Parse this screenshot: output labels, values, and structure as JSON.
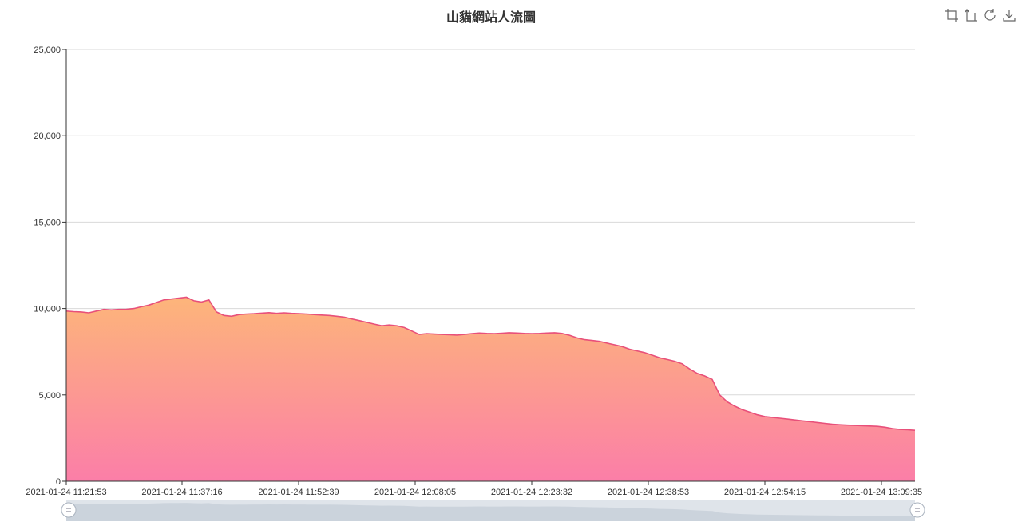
{
  "title": "山貓網站人流圖",
  "toolbox": [
    {
      "name": "zoom-icon"
    },
    {
      "name": "zoom-reset-icon"
    },
    {
      "name": "restore-icon"
    },
    {
      "name": "save-image-icon"
    }
  ],
  "colors": {
    "line": "#e8507a",
    "area_top": "#fdb57a",
    "area_bottom": "#fb7ea8",
    "grid": "#d9d9d9",
    "axis": "#333333",
    "zoom_bg": "#dfe4ea",
    "zoom_fill": "#c6ced8"
  },
  "chart_data": {
    "type": "area",
    "title": "山貓網站人流圖",
    "xlabel": "",
    "ylabel": "",
    "ylim": [
      0,
      25000
    ],
    "y_ticks": [
      "0",
      "5,000",
      "10,000",
      "15,000",
      "20,000",
      "25,000"
    ],
    "x_tick_labels": [
      "2021-01-24 11:21:53",
      "2021-01-24 11:37:16",
      "2021-01-24 11:52:39",
      "2021-01-24 12:08:05",
      "2021-01-24 12:23:32",
      "2021-01-24 12:38:53",
      "2021-01-24 12:54:15",
      "2021-01-24 13:09:35"
    ],
    "grid": true,
    "data_zoom": {
      "start": 0,
      "end": 100
    },
    "x": [
      0,
      1,
      2,
      3,
      4,
      5,
      6,
      7,
      8,
      9,
      10,
      11,
      12,
      13,
      14,
      15,
      16,
      17,
      18,
      19,
      20,
      21,
      22,
      23,
      24,
      25,
      26,
      27,
      28,
      29,
      30,
      31,
      32,
      33,
      34,
      35,
      36,
      37,
      38,
      39,
      40,
      41,
      42,
      43,
      44,
      45,
      46,
      47,
      48,
      49,
      50,
      51,
      52,
      53,
      54,
      55,
      56,
      57,
      58,
      59,
      60,
      61,
      62,
      63,
      64,
      65,
      66,
      67,
      68,
      69,
      70,
      71,
      72,
      73,
      74,
      75,
      76,
      77,
      78,
      79,
      80,
      81,
      82,
      83,
      84,
      85,
      86,
      87,
      88,
      89,
      90,
      91,
      92,
      93,
      94,
      95,
      96,
      97,
      98,
      99,
      100,
      101,
      102,
      103,
      104,
      105,
      106,
      107,
      108,
      109,
      110,
      111,
      112,
      113
    ],
    "values": [
      9850,
      9820,
      9800,
      9750,
      9850,
      9950,
      9920,
      9950,
      9960,
      10000,
      10100,
      10200,
      10350,
      10500,
      10550,
      10600,
      10650,
      10450,
      10380,
      10500,
      9800,
      9600,
      9550,
      9650,
      9680,
      9700,
      9730,
      9760,
      9720,
      9750,
      9720,
      9700,
      9680,
      9650,
      9620,
      9600,
      9550,
      9500,
      9400,
      9300,
      9200,
      9100,
      9000,
      9050,
      9000,
      8900,
      8700,
      8500,
      8550,
      8520,
      8500,
      8480,
      8460,
      8500,
      8550,
      8580,
      8560,
      8550,
      8570,
      8600,
      8580,
      8560,
      8550,
      8560,
      8580,
      8600,
      8560,
      8450,
      8300,
      8200,
      8150,
      8100,
      8000,
      7900,
      7800,
      7650,
      7550,
      7450,
      7300,
      7150,
      7050,
      6950,
      6800,
      6500,
      6250,
      6100,
      5900,
      5000,
      4600,
      4350,
      4150,
      4000,
      3850,
      3750,
      3700,
      3650,
      3600,
      3550,
      3500,
      3450,
      3400,
      3350,
      3300,
      3270,
      3250,
      3230,
      3210,
      3200,
      3180,
      3130,
      3050,
      3000,
      2980,
      2950
    ]
  }
}
